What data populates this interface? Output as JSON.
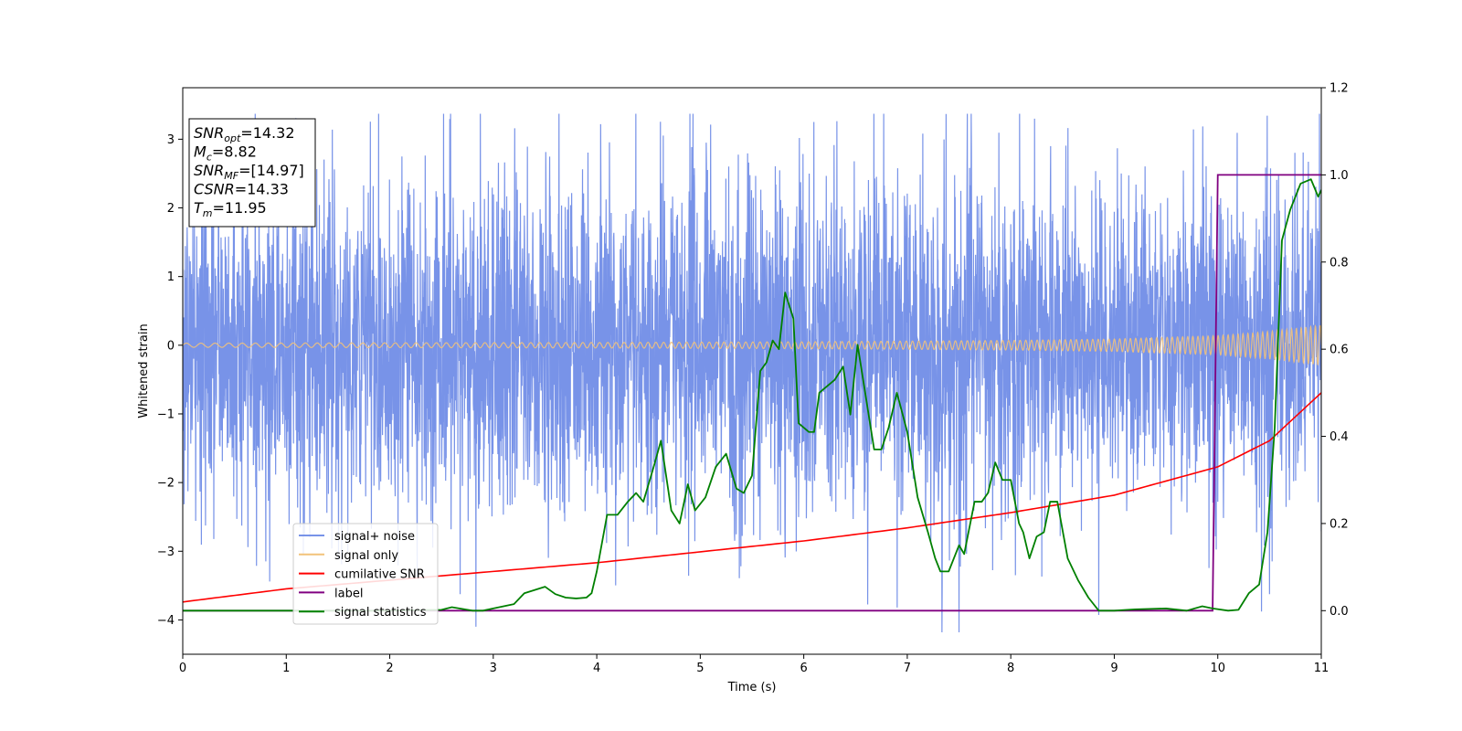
{
  "chart_data": {
    "type": "line",
    "xlabel": "Time (s)",
    "ylabel": "Whitened strain",
    "xlim": [
      0,
      11
    ],
    "ylim": [
      -4.5,
      3.75
    ],
    "y2lim": [
      -0.1,
      1.2
    ],
    "grid": false,
    "legend_position": "lower-left",
    "x_ticks": [
      "0",
      "1",
      "2",
      "3",
      "4",
      "5",
      "6",
      "7",
      "8",
      "9",
      "10",
      "11"
    ],
    "y_ticks": [
      "3",
      "2",
      "1",
      "0",
      "−1",
      "−2",
      "−3",
      "−4"
    ],
    "y2_ticks": [
      "1.2",
      "1.0",
      "0.8",
      "0.6",
      "0.4",
      "0.2",
      "0.0"
    ],
    "annotation": {
      "lines": [
        {
          "sym": "SNR",
          "sub": "opt",
          "value": "=14.32"
        },
        {
          "sym": "M",
          "sub": "c",
          "value": "=8.82"
        },
        {
          "sym": "SNR",
          "sub": "MF",
          "value": "=[14.97]"
        },
        {
          "sym": "CSNR",
          "sub": "",
          "value": "=14.33"
        },
        {
          "sym": "T",
          "sub": "m",
          "value": "=11.95"
        }
      ]
    },
    "series": [
      {
        "name": "signal+ noise",
        "color": "#7893e8",
        "axis": "left",
        "noise_envelope_x": [
          0,
          2,
          4,
          6,
          8,
          10,
          11
        ],
        "noise_envelope_y": [
          2.3,
          2.4,
          2.4,
          2.4,
          2.4,
          2.3,
          2.3
        ],
        "peak_max": 3.37,
        "peak_min": -4.18
      },
      {
        "name": "signal only",
        "color": "#f2c27a",
        "axis": "left",
        "amplitude_x": [
          0,
          4,
          6,
          8,
          9,
          10,
          10.5,
          11
        ],
        "amplitude_y": [
          0.03,
          0.04,
          0.05,
          0.07,
          0.09,
          0.14,
          0.2,
          0.29
        ],
        "freq_start": 7,
        "freq_end": 22
      },
      {
        "name": "cumilative SNR",
        "color": "#ff0000",
        "axis": "right",
        "x": [
          0,
          1,
          2,
          3,
          4,
          5,
          6,
          7,
          8,
          9,
          10,
          10.5,
          11
        ],
        "y": [
          0.02,
          0.05,
          0.07,
          0.09,
          0.11,
          0.135,
          0.16,
          0.19,
          0.225,
          0.265,
          0.33,
          0.39,
          0.5
        ]
      },
      {
        "name": "label",
        "color": "#800080",
        "axis": "right",
        "x": [
          0,
          9.95,
          10.0,
          11
        ],
        "y": [
          0,
          0,
          1,
          1
        ]
      },
      {
        "name": "signal statistics",
        "color": "#008000",
        "axis": "right",
        "x": [
          0,
          0.5,
          1,
          1.5,
          2,
          2.5,
          2.6,
          2.8,
          2.9,
          3.0,
          3.1,
          3.2,
          3.3,
          3.5,
          3.6,
          3.7,
          3.8,
          3.9,
          3.95,
          4.0,
          4.1,
          4.2,
          4.3,
          4.38,
          4.45,
          4.55,
          4.62,
          4.72,
          4.8,
          4.88,
          4.95,
          5.05,
          5.15,
          5.25,
          5.35,
          5.42,
          5.5,
          5.58,
          5.64,
          5.7,
          5.76,
          5.82,
          5.9,
          5.95,
          6.05,
          6.1,
          6.15,
          6.25,
          6.3,
          6.38,
          6.45,
          6.52,
          6.58,
          6.68,
          6.75,
          6.82,
          6.9,
          7.0,
          7.1,
          7.2,
          7.27,
          7.32,
          7.4,
          7.5,
          7.55,
          7.65,
          7.72,
          7.78,
          7.85,
          7.92,
          8.0,
          8.08,
          8.12,
          8.18,
          8.25,
          8.32,
          8.38,
          8.45,
          8.55,
          8.65,
          8.75,
          8.85,
          9.0,
          9.2,
          9.5,
          9.7,
          9.85,
          9.95,
          10.1,
          10.2,
          10.3,
          10.4,
          10.48,
          10.55,
          10.62,
          10.7,
          10.8,
          10.9,
          10.97,
          11.03,
          11.0
        ],
        "y": [
          0.0,
          0.0,
          0.0,
          0.0,
          0.0,
          0.002,
          0.008,
          0.0,
          0.0,
          0.005,
          0.01,
          0.015,
          0.04,
          0.055,
          0.038,
          0.03,
          0.028,
          0.03,
          0.04,
          0.09,
          0.22,
          0.22,
          0.25,
          0.27,
          0.25,
          0.33,
          0.39,
          0.23,
          0.2,
          0.29,
          0.23,
          0.26,
          0.33,
          0.36,
          0.28,
          0.27,
          0.31,
          0.55,
          0.57,
          0.62,
          0.6,
          0.73,
          0.67,
          0.43,
          0.41,
          0.41,
          0.5,
          0.52,
          0.53,
          0.56,
          0.45,
          0.61,
          0.52,
          0.37,
          0.37,
          0.42,
          0.5,
          0.41,
          0.26,
          0.18,
          0.12,
          0.09,
          0.09,
          0.15,
          0.13,
          0.25,
          0.25,
          0.27,
          0.34,
          0.3,
          0.3,
          0.2,
          0.18,
          0.12,
          0.17,
          0.18,
          0.25,
          0.25,
          0.12,
          0.07,
          0.03,
          0.0,
          0.0,
          0.003,
          0.005,
          0.0,
          0.01,
          0.005,
          0.0,
          0.002,
          0.04,
          0.06,
          0.18,
          0.42,
          0.85,
          0.92,
          0.98,
          0.99,
          0.95,
          0.98,
          0.96
        ]
      }
    ]
  }
}
